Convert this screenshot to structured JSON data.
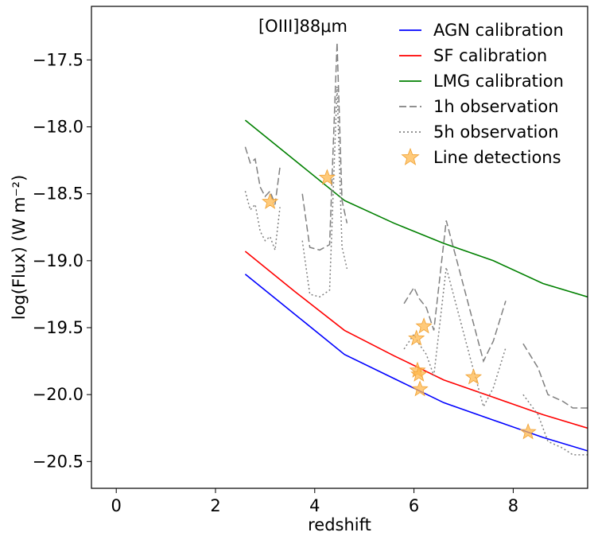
{
  "chart_data": {
    "type": "line",
    "title": "[OIII]88μm",
    "xlabel": "redshift",
    "ylabel": "log(Flux) (W m⁻²)",
    "xlim": [
      -0.5,
      9.5
    ],
    "ylim": [
      -20.7,
      -17.1
    ],
    "xticks": [
      0,
      2,
      4,
      6,
      8
    ],
    "yticks": [
      -20.5,
      -20.0,
      -19.5,
      -19.0,
      -18.5,
      -18.0,
      -17.5
    ],
    "xtick_labels": [
      "0",
      "2",
      "4",
      "6",
      "8"
    ],
    "ytick_labels": [
      "−20.5",
      "−20.0",
      "−19.5",
      "−19.0",
      "−18.5",
      "−18.0",
      "−17.5"
    ],
    "legend_position": "top-right",
    "series": [
      {
        "name": "AGN calibration",
        "style": "solid",
        "color": "#0000ff",
        "x": [
          2.6,
          3.6,
          4.6,
          5.6,
          6.6,
          7.6,
          8.6,
          9.5
        ],
        "y": [
          -19.1,
          -19.4,
          -19.7,
          -19.88,
          -20.06,
          -20.19,
          -20.32,
          -20.42
        ]
      },
      {
        "name": "SF calibration",
        "style": "solid",
        "color": "#ff0000",
        "x": [
          2.6,
          3.6,
          4.6,
          5.6,
          6.6,
          7.6,
          8.6,
          9.5
        ],
        "y": [
          -18.93,
          -19.23,
          -19.52,
          -19.71,
          -19.89,
          -20.02,
          -20.15,
          -20.25
        ]
      },
      {
        "name": "LMG calibration",
        "style": "solid",
        "color": "#008000",
        "x": [
          2.6,
          3.6,
          4.6,
          5.6,
          6.6,
          7.6,
          8.6,
          9.5
        ],
        "y": [
          -17.95,
          -18.25,
          -18.55,
          -18.72,
          -18.87,
          -19.0,
          -19.17,
          -19.27
        ]
      },
      {
        "name": "1h observation",
        "style": "dashed",
        "color": "#808080",
        "segments": [
          {
            "x": [
              2.6,
              2.7,
              2.8,
              2.9,
              3.0,
              3.1,
              3.2,
              3.3
            ],
            "y": [
              -18.15,
              -18.27,
              -18.24,
              -18.45,
              -18.52,
              -18.48,
              -18.58,
              -18.3
            ]
          },
          {
            "x": [
              3.75,
              3.9,
              4.1,
              4.3,
              4.45,
              4.55,
              4.65
            ],
            "y": [
              -18.5,
              -18.9,
              -18.92,
              -18.88,
              -17.37,
              -18.55,
              -18.72
            ]
          },
          {
            "x": [
              5.8,
              6.0,
              6.1,
              6.25,
              6.4,
              6.65,
              6.9,
              7.15,
              7.4,
              7.6,
              7.85
            ],
            "y": [
              -19.32,
              -19.2,
              -19.28,
              -19.35,
              -19.52,
              -18.7,
              -19.05,
              -19.4,
              -19.75,
              -19.6,
              -19.3
            ]
          },
          {
            "x": [
              8.2,
              8.5,
              8.7,
              9.0,
              9.2,
              9.5
            ],
            "y": [
              -19.62,
              -19.8,
              -20.0,
              -20.05,
              -20.1,
              -20.1
            ]
          }
        ]
      },
      {
        "name": "5h observation",
        "style": "dotted",
        "color": "#808080",
        "segments": [
          {
            "x": [
              2.6,
              2.7,
              2.8,
              2.9,
              3.0,
              3.1,
              3.2,
              3.3
            ],
            "y": [
              -18.48,
              -18.62,
              -18.58,
              -18.78,
              -18.85,
              -18.82,
              -18.92,
              -18.6
            ]
          },
          {
            "x": [
              3.75,
              3.9,
              4.1,
              4.3,
              4.45,
              4.55,
              4.65
            ],
            "y": [
              -18.85,
              -19.25,
              -19.27,
              -19.22,
              -17.7,
              -18.9,
              -19.06
            ]
          },
          {
            "x": [
              5.8,
              6.0,
              6.1,
              6.25,
              6.4,
              6.65,
              6.9,
              7.15,
              7.4,
              7.6,
              7.85
            ],
            "y": [
              -19.66,
              -19.55,
              -19.62,
              -19.7,
              -19.86,
              -19.05,
              -19.4,
              -19.75,
              -20.09,
              -19.95,
              -19.65
            ]
          },
          {
            "x": [
              8.2,
              8.5,
              8.7,
              9.0,
              9.2,
              9.5
            ],
            "y": [
              -20.0,
              -20.15,
              -20.35,
              -20.4,
              -20.45,
              -20.45
            ]
          }
        ]
      }
    ],
    "scatter": {
      "name": "Line detections",
      "color": "#ffb84d",
      "x": [
        3.1,
        4.25,
        6.05,
        6.07,
        6.1,
        6.12,
        6.2,
        7.2,
        8.3
      ],
      "y": [
        -18.56,
        -18.38,
        -19.58,
        -19.82,
        -19.85,
        -19.96,
        -19.49,
        -19.87,
        -20.28
      ]
    }
  }
}
